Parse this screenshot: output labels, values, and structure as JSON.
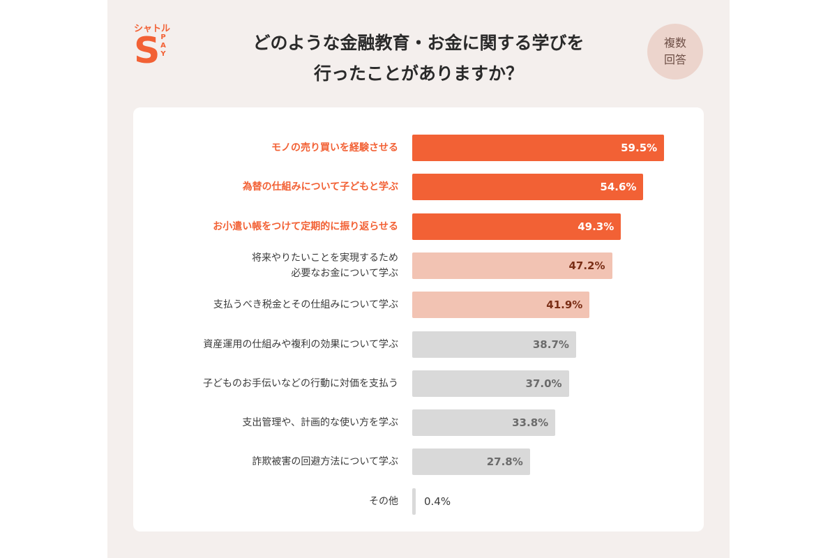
{
  "brand": {
    "name_top": "シャトル",
    "letter": "S",
    "sub": [
      "P",
      "A",
      "Y"
    ]
  },
  "title_lines": [
    "どのような金融教育・お金に関する学びを",
    "行ったことがありますか？"
  ],
  "badge_lines": [
    "複数",
    "回答"
  ],
  "colors": {
    "top": "#f26135",
    "mid": "#f2c3b3",
    "low": "#d9d9d9"
  },
  "chart_data": {
    "type": "bar",
    "orientation": "horizontal",
    "title": "どのような金融教育・お金に関する学びを行ったことがありますか？",
    "xlim": [
      0,
      60
    ],
    "categories": [
      "モノの売り買いを経験させる",
      "為替の仕組みについて子どもと学ぶ",
      "お小遣い帳をつけて定期的に振り返らせる",
      "将来やりたいことを実現するため必要なお金について学ぶ",
      "支払うべき税金とその仕組みについて学ぶ",
      "資産運用の仕組みや複利の効果について学ぶ",
      "子どものお手伝いなどの行動に対価を支払う",
      "支出管理や、計画的な使い方を学ぶ",
      "詐欺被害の回避方法について学ぶ",
      "その他"
    ],
    "values": [
      59.5,
      54.6,
      49.3,
      47.2,
      41.9,
      38.7,
      37.0,
      33.8,
      27.8,
      0.4
    ],
    "rows": [
      {
        "label_lines": [
          "モノの売り買いを経験させる"
        ],
        "value_label": "59.5%",
        "tier": "top"
      },
      {
        "label_lines": [
          "為替の仕組みについて子どもと学ぶ"
        ],
        "value_label": "54.6%",
        "tier": "top"
      },
      {
        "label_lines": [
          "お小遣い帳をつけて定期的に振り返らせる"
        ],
        "value_label": "49.3%",
        "tier": "top"
      },
      {
        "label_lines": [
          "将来やりたいことを実現するため",
          "必要なお金について学ぶ"
        ],
        "value_label": "47.2%",
        "tier": "mid"
      },
      {
        "label_lines": [
          "支払うべき税金とその仕組みについて学ぶ"
        ],
        "value_label": "41.9%",
        "tier": "mid"
      },
      {
        "label_lines": [
          "資産運用の仕組みや複利の効果について学ぶ"
        ],
        "value_label": "38.7%",
        "tier": "low"
      },
      {
        "label_lines": [
          "子どものお手伝いなどの行動に対価を支払う"
        ],
        "value_label": "37.0%",
        "tier": "low"
      },
      {
        "label_lines": [
          "支出管理や、計画的な使い方を学ぶ"
        ],
        "value_label": "33.8%",
        "tier": "low"
      },
      {
        "label_lines": [
          "詐欺被害の回避方法について学ぶ"
        ],
        "value_label": "27.8%",
        "tier": "low"
      },
      {
        "label_lines": [
          "その他"
        ],
        "value_label": "0.4%",
        "tier": "low"
      }
    ]
  }
}
